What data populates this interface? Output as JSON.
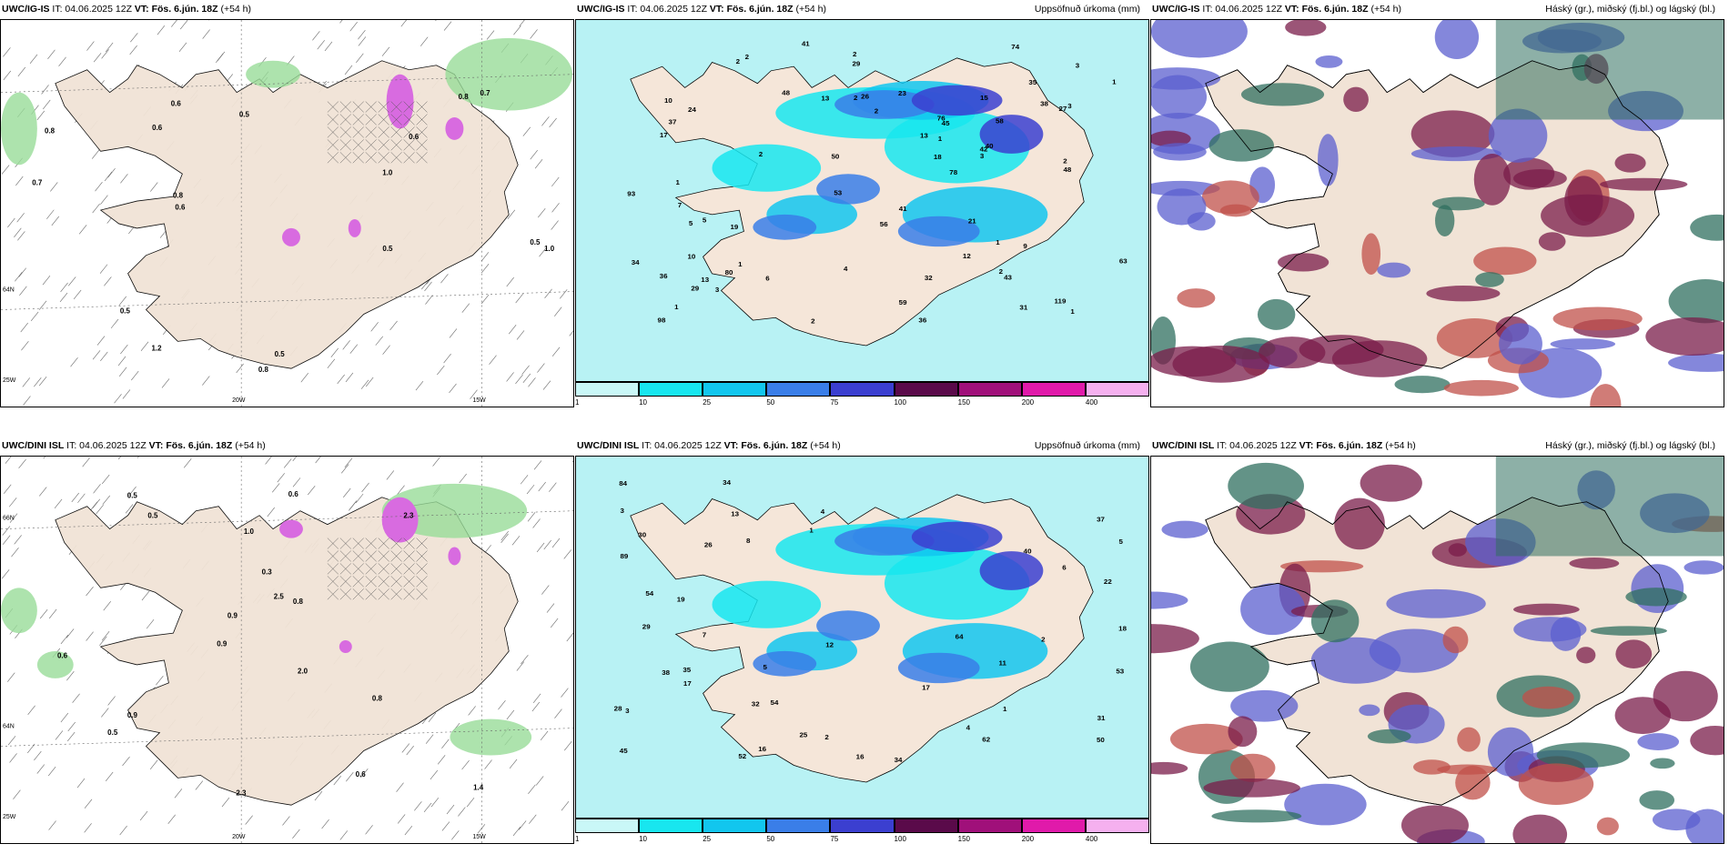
{
  "panels": [
    {
      "model": "UWC/IG-IS",
      "it": "IT: 04.06.2025 12Z",
      "vt_label": "VT:",
      "vt": "Fös. 6.jún. 18Z",
      "lead": "(+54 h)",
      "right_title": "",
      "type": "precip-type"
    },
    {
      "model": "UWC/IG-IS",
      "it": "IT: 04.06.2025 12Z",
      "vt_label": "VT:",
      "vt": "Fös. 6.jún. 18Z",
      "lead": "(+54 h)",
      "right_title": "Uppsöfnuð úrkoma (mm)",
      "type": "accum"
    },
    {
      "model": "UWC/IG-IS",
      "it": "IT: 04.06.2025 12Z",
      "vt_label": "VT:",
      "vt": "Fös. 6.jún. 18Z",
      "lead": "(+54 h)",
      "right_title": "Háský (gr.), miðský (fj.bl.) og lágský (bl.)",
      "type": "clouds"
    },
    {
      "model": "UWC/DINI ISL",
      "it": "IT: 04.06.2025 12Z",
      "vt_label": "VT:",
      "vt": "Fös. 6.jún. 18Z",
      "lead": "(+54 h)",
      "right_title": "",
      "type": "precip-type"
    },
    {
      "model": "UWC/DINI ISL",
      "it": "IT: 04.06.2025 12Z",
      "vt_label": "VT:",
      "vt": "Fös. 6.jún. 18Z",
      "lead": "(+54 h)",
      "right_title": "Uppsöfnuð úrkoma (mm)",
      "type": "accum"
    },
    {
      "model": "UWC/DINI ISL",
      "it": "IT: 04.06.2025 12Z",
      "vt_label": "VT:",
      "vt": "Fös. 6.jún. 18Z",
      "lead": "(+54 h)",
      "right_title": "Háský (gr.), miðský (fj.bl.) og lágský (bl.)",
      "type": "clouds"
    }
  ],
  "axis_labels": {
    "lon_20w": "20W",
    "lon_15w": "15W",
    "lat_66n": "66N",
    "lat_64n": "64N",
    "lon_25w": "25W"
  },
  "colorbar": {
    "ticks": [
      "1",
      "10",
      "25",
      "50",
      "75",
      "100",
      "150",
      "200",
      "400"
    ],
    "colors": [
      "#c9f7f7",
      "#18e6ef",
      "#12c6ee",
      "#3a7ee8",
      "#3b3fd0",
      "#5a0a4a",
      "#a0107a",
      "#e01aaa",
      "#f5b0ef"
    ]
  },
  "accum_labels_top": [
    "12",
    "17",
    "13",
    "15",
    "13",
    "3",
    "56",
    "63",
    "48",
    "50",
    "36",
    "59",
    "43",
    "58",
    "41",
    "27",
    "74",
    "80",
    "98",
    "93",
    "119",
    "40",
    "35",
    "38",
    "10",
    "26",
    "29",
    "78",
    "41",
    "36",
    "32",
    "31",
    "34",
    "48",
    "37",
    "76",
    "29",
    "18",
    "19",
    "13",
    "21",
    "24",
    "53",
    "45",
    "42",
    "23",
    "9",
    "2",
    "1",
    "2",
    "5",
    "4",
    "10",
    "3",
    "2",
    "1",
    "2",
    "1",
    "1",
    "1",
    "2",
    "2",
    "1",
    "7",
    "3",
    "5",
    "6",
    "3",
    "1",
    "2",
    "2",
    "2"
  ],
  "accum_labels_bottom": [
    "40",
    "16",
    "84",
    "54",
    "89",
    "50",
    "52",
    "38",
    "34",
    "37",
    "29",
    "35",
    "11",
    "13",
    "30",
    "28",
    "31",
    "16",
    "45",
    "34",
    "26",
    "19",
    "25",
    "54",
    "64",
    "62",
    "32",
    "53",
    "22",
    "17",
    "4",
    "12",
    "18",
    "8",
    "2",
    "7",
    "6",
    "5",
    "3",
    "17",
    "1",
    "2",
    "1",
    "3",
    "5",
    "4"
  ],
  "precip_labels_top": [
    "0.8",
    "0.6",
    "1.0",
    "0.5",
    "0.8",
    "0.8",
    "0.5",
    "0.6",
    "0.7",
    "1.0",
    "0.5",
    "0.6",
    "0.6",
    "0.5",
    "0.7",
    "1.2",
    "0.8",
    "0.5"
  ],
  "precip_labels_bottom": [
    "0.5",
    "0.6",
    "2.0",
    "0.6",
    "0.5",
    "0.5",
    "2.3",
    "0.9",
    "0.9",
    "0.8",
    "1.0",
    "1.4",
    "2.3",
    "0.8",
    "0.6",
    "0.9",
    "0.3",
    "2.5"
  ]
}
